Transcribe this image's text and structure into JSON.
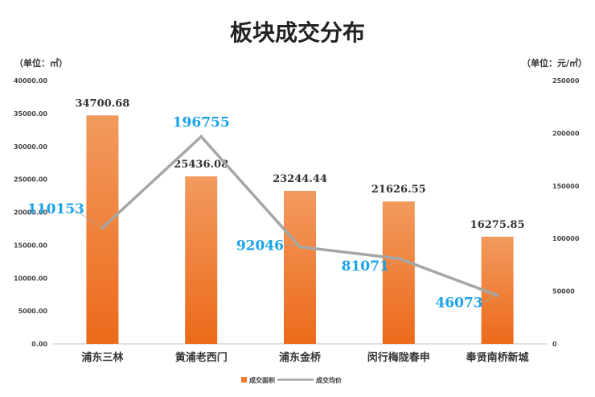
{
  "chart_data": {
    "type": "bar",
    "title": "板块成交分布",
    "left_unit": "（单位：㎡）",
    "right_unit": "（单位：元/㎡）",
    "categories": [
      "浦东三林",
      "黄浦老西门",
      "浦东金桥",
      "闵行梅陇春申",
      "奉贤南桥新城"
    ],
    "series": [
      {
        "name": "成交面积",
        "type": "bar",
        "axis": "left",
        "values": [
          34700.68,
          25436.08,
          23244.44,
          21626.55,
          16275.85
        ],
        "labels": [
          "34700.68",
          "25436.08",
          "23244.44",
          "21626.55",
          "16275.85"
        ]
      },
      {
        "name": "成交均价",
        "type": "line",
        "axis": "right",
        "values": [
          110153,
          196755,
          92046,
          81071,
          46073
        ],
        "labels": [
          "110153",
          "196755",
          "92046",
          "81071",
          "46073"
        ]
      }
    ],
    "left_axis": {
      "min": 0,
      "max": 40000,
      "ticks": [
        "0.00",
        "5000.00",
        "10000.00",
        "15000.00",
        "20000.00",
        "25000.00",
        "30000.00",
        "35000.00",
        "40000.00"
      ]
    },
    "right_axis": {
      "min": 0,
      "max": 250000,
      "ticks": [
        "0",
        "50000",
        "100000",
        "150000",
        "200000",
        "250000"
      ]
    },
    "grid": false,
    "legend": "bottom",
    "colors": {
      "bar": "#ef7a2c",
      "bar_light": "#f4a26a",
      "line": "#a6a6a6",
      "line_label": "#1aa3e8",
      "text": "#333333"
    }
  }
}
